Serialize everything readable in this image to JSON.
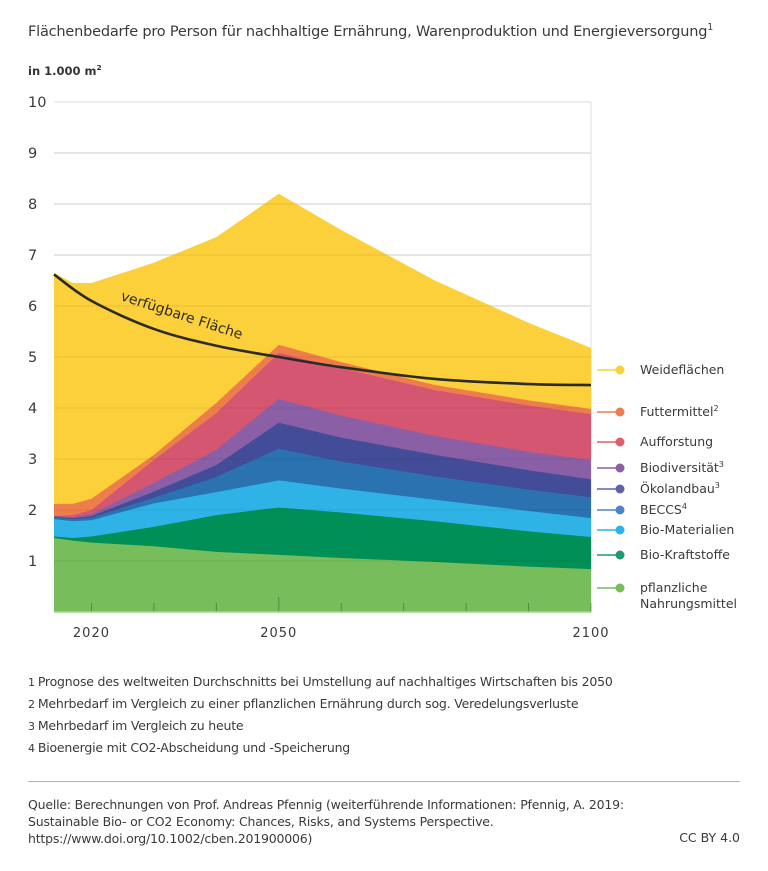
{
  "header": {
    "title": "Flächenbedarfe pro Person für nachhaltige Ernährung, Warenproduktion und Energieversorgung",
    "title_sup": "1",
    "unit_label": "in 1.000 m",
    "unit_sup": "2"
  },
  "chart_data": {
    "type": "area",
    "stacked": true,
    "title": "Flächenbedarfe pro Person für nachhaltige Ernährung, Warenproduktion und Energieversorgung",
    "xlabel": "",
    "ylabel": "in 1.000 m²",
    "ylim": [
      0,
      10
    ],
    "xlim": [
      2014,
      2100
    ],
    "grid": true,
    "legend_position": "right",
    "y_ticks": [
      "1",
      "2",
      "3",
      "4",
      "5",
      "6",
      "7",
      "8",
      "9",
      "10"
    ],
    "x_ticks": [
      "2020",
      "2050",
      "2100"
    ],
    "x": [
      2014,
      2017,
      2020,
      2030,
      2040,
      2050,
      2060,
      2075,
      2090,
      2100
    ],
    "cumulative_tops": [
      {
        "name": "pflanzliche Nahrungsmittel",
        "color": "#77bd5b",
        "values": [
          1.45,
          1.4,
          1.36,
          1.29,
          1.18,
          1.12,
          1.06,
          0.98,
          0.89,
          0.84
        ]
      },
      {
        "name": "Bio-Kraftstoffe",
        "color": "#008f56",
        "values": [
          1.48,
          1.45,
          1.48,
          1.67,
          1.9,
          2.05,
          1.95,
          1.78,
          1.58,
          1.47
        ]
      },
      {
        "name": "Bio-Materialien",
        "color": "#2fb3e6",
        "values": [
          1.82,
          1.78,
          1.8,
          2.13,
          2.35,
          2.58,
          2.42,
          2.2,
          1.98,
          1.84
        ]
      },
      {
        "name": "BECCS",
        "color": "#2a72b0",
        "values": [
          1.86,
          1.82,
          1.85,
          2.24,
          2.65,
          3.2,
          2.95,
          2.66,
          2.4,
          2.25
        ]
      },
      {
        "name": "Ökolandbau",
        "color": "#434c98",
        "values": [
          1.87,
          1.84,
          1.88,
          2.36,
          2.88,
          3.71,
          3.42,
          3.08,
          2.78,
          2.6
        ]
      },
      {
        "name": "Biodiversität",
        "color": "#8a5fa5",
        "values": [
          1.88,
          1.86,
          1.92,
          2.53,
          3.18,
          4.18,
          3.85,
          3.45,
          3.14,
          2.98
        ]
      },
      {
        "name": "Aufforstung",
        "color": "#d55671",
        "values": [
          1.88,
          1.9,
          2.0,
          2.98,
          3.9,
          5.08,
          4.78,
          4.35,
          4.05,
          3.88
        ]
      },
      {
        "name": "Futtermittel",
        "color": "#ed7d4b",
        "values": [
          2.12,
          2.12,
          2.22,
          3.08,
          4.1,
          5.24,
          4.9,
          4.45,
          4.15,
          3.98
        ]
      },
      {
        "name": "Weideflächen",
        "color": "#fcd03a",
        "values": [
          6.65,
          6.45,
          6.45,
          6.85,
          7.35,
          8.2,
          7.49,
          6.5,
          5.67,
          5.18
        ]
      }
    ],
    "line_series": {
      "name": "verfügbare Fläche",
      "color": "#2b2b2b",
      "x": [
        2014,
        2020,
        2030,
        2040,
        2050,
        2060,
        2075,
        2090,
        2100
      ],
      "values": [
        6.62,
        6.1,
        5.55,
        5.22,
        5.0,
        4.8,
        4.57,
        4.47,
        4.45
      ]
    },
    "annotation": "verfügbare Fläche"
  },
  "legend": [
    {
      "label": "Weideflächen",
      "sup": "",
      "color": "#fcd03a",
      "line2": ""
    },
    {
      "label": "Futtermittel",
      "sup": "2",
      "color": "#ed7d4b",
      "line2": ""
    },
    {
      "label": "Aufforstung",
      "sup": "",
      "color": "#e0606a",
      "line2": ""
    },
    {
      "label": "Biodiversität",
      "sup": "3",
      "color": "#8a5fa5",
      "line2": ""
    },
    {
      "label": "Ökolandbau",
      "sup": "3",
      "color": "#5e62aa",
      "line2": ""
    },
    {
      "label": "BECCS",
      "sup": "4",
      "color": "#4a86c5",
      "line2": ""
    },
    {
      "label": "Bio-Materialien",
      "sup": "",
      "color": "#2fb3e6",
      "line2": ""
    },
    {
      "label": "Bio-Kraftstoffe",
      "sup": "",
      "color": "#1f9a6c",
      "line2": ""
    },
    {
      "label": "pflanzliche",
      "sup": "",
      "color": "#77bd5b",
      "line2": "Nahrungsmittel"
    }
  ],
  "footnotes": [
    {
      "n": "1",
      "text": "Prognose des weltweiten Durchschnitts bei Umstellung auf nachhaltiges Wirtschaften bis 2050"
    },
    {
      "n": "2",
      "text": "Mehrbedarf im Vergleich zu einer pflanzlichen Ernährung durch sog. Veredelungsverluste"
    },
    {
      "n": "3",
      "text": "Mehrbedarf im Vergleich zu heute"
    },
    {
      "n": "4",
      "text": "Bioenergie mit CO2-Abscheidung und -Speicherung"
    }
  ],
  "source": {
    "lines": [
      "Quelle: Berechnungen von Prof. Andreas Pfennig (weiterführende Informationen: Pfennig, A. 2019:",
      "Sustainable Bio- or CO2 Economy: Chances, Risks, and Systems Perspective.",
      "https://www.doi.org/10.1002/cben.201900006)"
    ],
    "license": "CC BY 4.0"
  }
}
